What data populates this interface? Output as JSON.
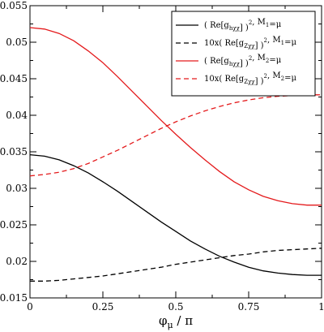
{
  "chart_data": {
    "type": "line",
    "xlabel": "φ_μ / π",
    "xlim": [
      0,
      1
    ],
    "ylim": [
      0.015,
      0.055
    ],
    "grid": false,
    "legend_position": "top-right",
    "x_ticks": [
      {
        "value": 0,
        "label": "0"
      },
      {
        "value": 0.25,
        "label": "0.25"
      },
      {
        "value": 0.5,
        "label": "0.5"
      },
      {
        "value": 0.75,
        "label": "0.75"
      },
      {
        "value": 1,
        "label": "1"
      }
    ],
    "y_ticks": [
      {
        "value": 0.015,
        "label": "0.015"
      },
      {
        "value": 0.02,
        "label": "0.02"
      },
      {
        "value": 0.025,
        "label": "0.025"
      },
      {
        "value": 0.03,
        "label": "0.03"
      },
      {
        "value": 0.035,
        "label": "0.035"
      },
      {
        "value": 0.04,
        "label": "0.04"
      },
      {
        "value": 0.045,
        "label": "0.045"
      },
      {
        "value": 0.05,
        "label": "0.05"
      },
      {
        "value": 0.055,
        "label": "0.055"
      }
    ],
    "series": [
      {
        "name": "(Re[g_hχχ])², M₁=μ",
        "legend_main": "( Re[g",
        "legend_sub": "hχχ",
        "legend_close": "] )",
        "legend_sup": "2",
        "legend_suffix": ",  M",
        "legend_msub": "1",
        "legend_end": "=μ",
        "color": "#000000",
        "dash": "solid",
        "x": [
          0,
          0.05,
          0.1,
          0.15,
          0.2,
          0.25,
          0.3,
          0.35,
          0.4,
          0.45,
          0.5,
          0.55,
          0.6,
          0.65,
          0.7,
          0.75,
          0.8,
          0.85,
          0.9,
          0.95,
          1
        ],
        "y": [
          0.0346,
          0.0344,
          0.0339,
          0.0331,
          0.0321,
          0.0309,
          0.0296,
          0.0282,
          0.0268,
          0.0254,
          0.0241,
          0.0228,
          0.0217,
          0.0207,
          0.0199,
          0.0192,
          0.0187,
          0.0184,
          0.0182,
          0.0181,
          0.0181
        ]
      },
      {
        "name": "10x(Re[g_Zχχ])², M₁=μ",
        "legend_main": "10x( Re[g",
        "legend_sub": "Zχχ",
        "legend_close": "] )",
        "legend_sup": "2",
        "legend_suffix": ",  M",
        "legend_msub": "1",
        "legend_end": "=μ",
        "color": "#000000",
        "dash": "dashed",
        "x": [
          0,
          0.05,
          0.1,
          0.15,
          0.2,
          0.25,
          0.3,
          0.35,
          0.4,
          0.45,
          0.5,
          0.55,
          0.6,
          0.65,
          0.7,
          0.75,
          0.8,
          0.85,
          0.9,
          0.95,
          1
        ],
        "y": [
          0.0173,
          0.0173,
          0.0174,
          0.0176,
          0.0178,
          0.018,
          0.0183,
          0.0186,
          0.0189,
          0.0192,
          0.0196,
          0.0199,
          0.0202,
          0.0205,
          0.0208,
          0.021,
          0.0213,
          0.0215,
          0.0216,
          0.0217,
          0.0218
        ]
      },
      {
        "name": "(Re[g_hχχ])², M₂=μ",
        "legend_main": "( Re[g",
        "legend_sub": "hχχ",
        "legend_close": "] )",
        "legend_sup": "2",
        "legend_suffix": ",  M",
        "legend_msub": "2",
        "legend_end": "=μ",
        "color": "#e41a1c",
        "dash": "solid",
        "x": [
          0,
          0.05,
          0.1,
          0.15,
          0.2,
          0.25,
          0.3,
          0.35,
          0.4,
          0.45,
          0.5,
          0.55,
          0.6,
          0.65,
          0.7,
          0.75,
          0.8,
          0.85,
          0.9,
          0.95,
          1
        ],
        "y": [
          0.052,
          0.0518,
          0.0512,
          0.0502,
          0.0488,
          0.0472,
          0.0453,
          0.0433,
          0.0413,
          0.0393,
          0.0374,
          0.0356,
          0.0339,
          0.0323,
          0.0309,
          0.0298,
          0.0289,
          0.0283,
          0.0279,
          0.0277,
          0.0277
        ]
      },
      {
        "name": "10x(Re[g_Zχχ])², M₂=μ",
        "legend_main": "10x( Re[g",
        "legend_sub": "Zχχ",
        "legend_close": "] )",
        "legend_sup": "2",
        "legend_suffix": ",  M",
        "legend_msub": "2",
        "legend_end": "=μ",
        "color": "#e41a1c",
        "dash": "dashed",
        "x": [
          0,
          0.05,
          0.1,
          0.15,
          0.2,
          0.25,
          0.3,
          0.35,
          0.4,
          0.45,
          0.5,
          0.55,
          0.6,
          0.65,
          0.7,
          0.75,
          0.8,
          0.85,
          0.9,
          0.95,
          1
        ],
        "y": [
          0.0317,
          0.0319,
          0.0322,
          0.0327,
          0.0334,
          0.0343,
          0.0352,
          0.0362,
          0.0372,
          0.0382,
          0.0391,
          0.0399,
          0.0406,
          0.0412,
          0.0417,
          0.0421,
          0.0424,
          0.0426,
          0.0427,
          0.0428,
          0.0428
        ]
      }
    ]
  }
}
